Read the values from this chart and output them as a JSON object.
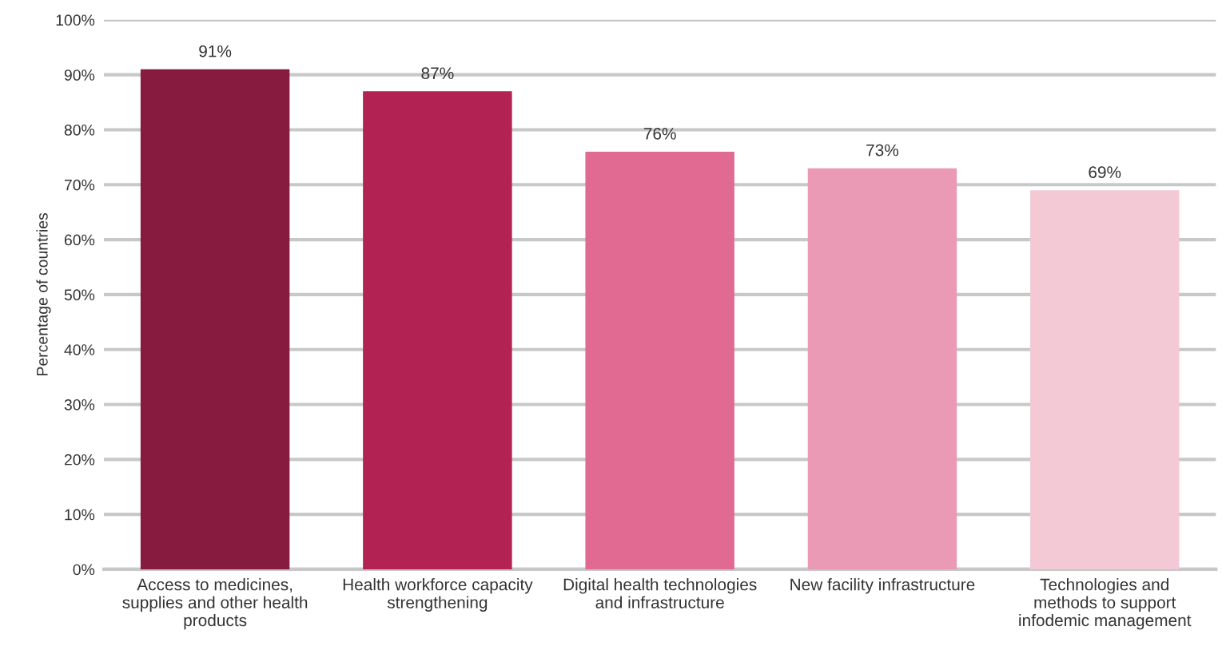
{
  "chart_data": {
    "type": "bar",
    "ylabel": "Percentage of countries",
    "categories": [
      "Access to medicines,\nsupplies and other health\nproducts",
      "Health workforce capacity\nstrengthening",
      "Digital health technologies\nand infrastructure",
      "New facility infrastructure",
      "Technologies and\nmethods to support\ninfodemic management"
    ],
    "values": [
      91,
      87,
      76,
      73,
      69
    ],
    "colors": [
      "#861a3f",
      "#b22252",
      "#e06a92",
      "#ea9ab5",
      "#f4c9d6"
    ],
    "value_labels": [
      "91%",
      "87%",
      "76%",
      "73%",
      "69%"
    ],
    "ylim": [
      0,
      100
    ],
    "yticks": [
      {
        "value": 0,
        "label": "0%"
      },
      {
        "value": 10,
        "label": "10%"
      },
      {
        "value": 20,
        "label": "20%"
      },
      {
        "value": 30,
        "label": "30%"
      },
      {
        "value": 40,
        "label": "40%"
      },
      {
        "value": 50,
        "label": "50%"
      },
      {
        "value": 60,
        "label": "60%"
      },
      {
        "value": 70,
        "label": "70%"
      },
      {
        "value": 80,
        "label": "80%"
      },
      {
        "value": 90,
        "label": "90%"
      },
      {
        "value": 100,
        "label": "100%"
      }
    ],
    "grid": "y",
    "legend": false
  }
}
